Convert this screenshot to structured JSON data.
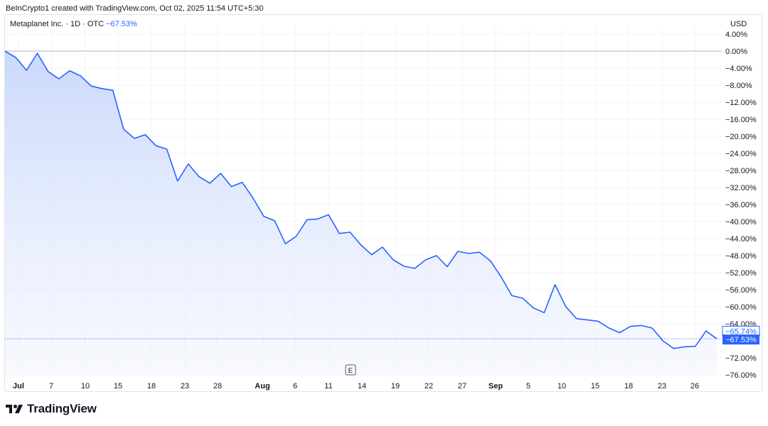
{
  "header": {
    "credit": "BeInCrypto1 created with TradingView.com, Oct 02, 2025 11:54 UTC+5:30",
    "symbol": "Metaplanet Inc. · 1D · OTC",
    "change": "−67.53%",
    "currency": "USD"
  },
  "branding": {
    "logo_text": "TradingView",
    "logo_icon": "tradingview-logo-icon"
  },
  "colors": {
    "line": "#2962ff",
    "fill_top": "#c7d6fb",
    "fill_bottom": "#eef2fd",
    "grid": "#f0f3fa",
    "zero_line": "#b2b5be"
  },
  "chart_data": {
    "type": "area",
    "title": "",
    "xlabel": "",
    "ylabel": "",
    "ylim": [
      -76,
      4
    ],
    "grid": true,
    "y_ticks": [
      "4.00%",
      "0.00%",
      "−4.00%",
      "−8.00%",
      "−12.00%",
      "−16.00%",
      "−20.00%",
      "−24.00%",
      "−28.00%",
      "−32.00%",
      "−36.00%",
      "−40.00%",
      "−44.00%",
      "−48.00%",
      "−52.00%",
      "−56.00%",
      "−60.00%",
      "−64.00%",
      "−72.00%",
      "−76.00%"
    ],
    "x_ticks": [
      "Jul",
      "7",
      "10",
      "15",
      "18",
      "23",
      "28",
      "Aug",
      "6",
      "11",
      "14",
      "19",
      "22",
      "27",
      "Sep",
      "5",
      "10",
      "15",
      "18",
      "23",
      "26"
    ],
    "event_marker": "E",
    "series": [
      {
        "values": [
          0,
          -1.5,
          -4.5,
          -0.5,
          -4.8,
          -6.5,
          -4.6,
          -5.8,
          -8.2,
          -8.8,
          -9.2,
          -18.3,
          -20.5,
          -19.6,
          -22.2,
          -23.0,
          -30.5,
          -26.5,
          -29.5,
          -31.0,
          -28.7,
          -31.8,
          -30.8,
          -34.5,
          -38.8,
          -39.8,
          -45.2,
          -43.5,
          -39.6,
          -39.4,
          -38.4,
          -42.8,
          -42.5,
          -45.5,
          -47.8,
          -46.0,
          -49.0,
          -50.5,
          -51.0,
          -49.0,
          -48.0,
          -50.6,
          -47.0,
          -47.5,
          -47.2,
          -49.2,
          -53.0,
          -57.4,
          -58.0,
          -60.3,
          -61.4,
          -54.8,
          -60.0,
          -62.8,
          -63.1,
          -63.4,
          -65.0,
          -66.1,
          -64.6,
          -64.4,
          -65.0,
          -68.0,
          -69.8,
          -69.4,
          -69.3,
          -65.7,
          -67.53
        ]
      }
    ],
    "last_value_labels": [
      "−65.74%",
      "−67.53%"
    ]
  }
}
